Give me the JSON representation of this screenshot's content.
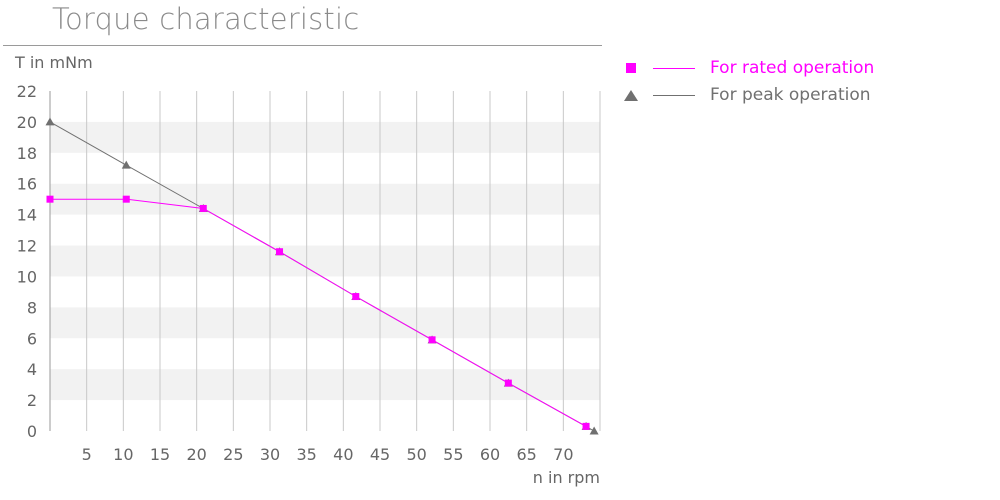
{
  "chart_data": {
    "type": "line",
    "title": "Torque characteristic",
    "xlabel": "n in rpm",
    "ylabel": "T in mNm",
    "xlim": [
      0,
      75
    ],
    "ylim": [
      0,
      22
    ],
    "x_ticks": [
      5,
      10,
      15,
      20,
      25,
      30,
      35,
      40,
      45,
      50,
      55,
      60,
      65,
      70
    ],
    "y_ticks": [
      0,
      2,
      4,
      6,
      8,
      10,
      12,
      14,
      16,
      18,
      20,
      22
    ],
    "grid": "vertical lines with alternating horizontal bands",
    "legend": "right",
    "series": [
      {
        "name": "For rated operation",
        "color": "#ff00ff",
        "marker": "square",
        "x": [
          0,
          10.4,
          20.9,
          31.3,
          41.7,
          52.1,
          62.5,
          73.1
        ],
        "y": [
          15.0,
          15.0,
          14.4,
          11.6,
          8.7,
          5.9,
          3.1,
          0.3
        ]
      },
      {
        "name": "For peak operation",
        "color": "#707070",
        "marker": "triangle",
        "x": [
          0,
          10.4,
          20.9,
          31.3,
          41.7,
          52.1,
          62.5,
          73.1,
          74.2
        ],
        "y": [
          20.0,
          17.2,
          14.4,
          11.6,
          8.7,
          5.9,
          3.1,
          0.3,
          0.0
        ]
      }
    ]
  }
}
